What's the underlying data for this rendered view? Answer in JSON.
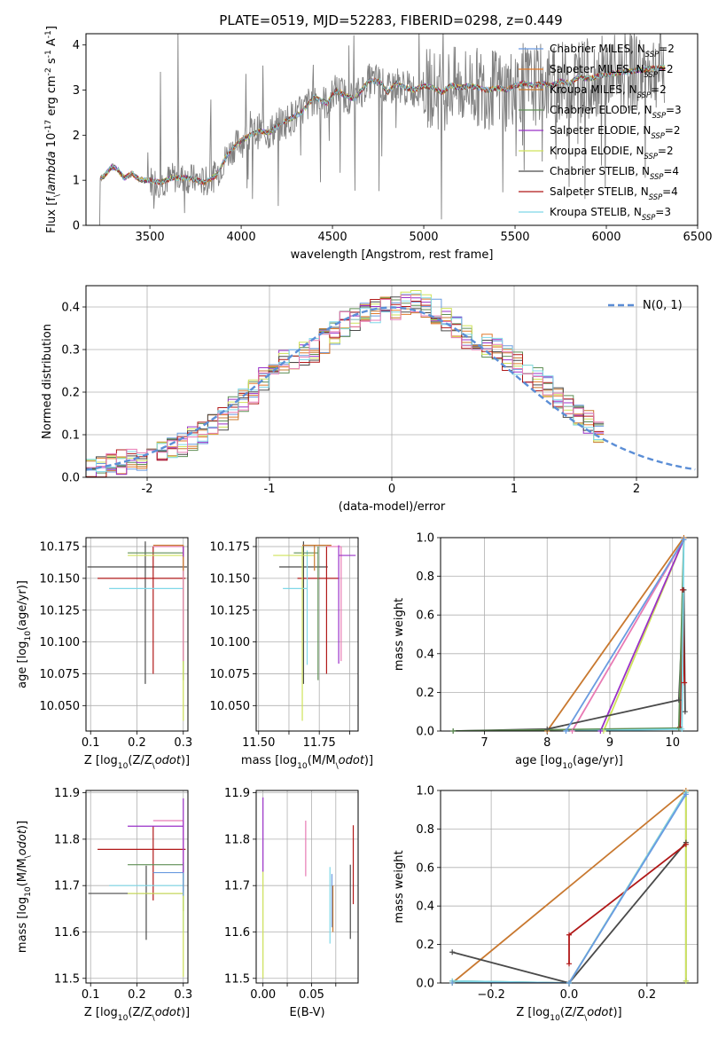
{
  "figure": {
    "title": "PLATE=0519, MJD=52283, FIBERID=0298, z=0.449"
  },
  "palette": {
    "Chabrier MILES": "#6a9be0",
    "Salpeter MILES": "#e07a2a",
    "Kroupa MILES": "#c8782f",
    "Chabrier ELODIE": "#5f8f55",
    "Salpeter ELODIE": "#9a30c8",
    "Kroupa ELODIE": "#cfe35a",
    "Chabrier STELIB": "#4a4a4a",
    "Salpeter STELIB": "#b01818",
    "Kroupa STELIB": "#7fd8e8",
    "pink": "#e87ab4",
    "data": "#808080"
  },
  "chart_data": [
    {
      "id": "spectrum",
      "type": "line",
      "xlabel": "wavelength [Angstrom, rest frame]",
      "ylabel": "Flux [f$_\\lambda$ 10$^{-17}$ erg cm$^{-2}$ s$^{-1}$ A$^{-1}$]",
      "xlim": [
        3150,
        6500
      ],
      "ylim": [
        0,
        4.25
      ],
      "xticks": [
        3500,
        4000,
        4500,
        5000,
        5500,
        6000,
        6500
      ],
      "yticks": [
        0,
        1,
        2,
        3,
        4
      ],
      "grid": false,
      "legend_position": "upper-right",
      "legend": [
        {
          "label": "Chabrier MILES, N",
          "sub": "SSP",
          "suffix": "=2",
          "color": "#6a9be0"
        },
        {
          "label": "Salpeter MILES, N",
          "sub": "SSP",
          "suffix": "=2",
          "color": "#e07a2a"
        },
        {
          "label": "Kroupa MILES, N",
          "sub": "SSP",
          "suffix": "=2",
          "color": "#c8782f"
        },
        {
          "label": "Chabrier ELODIE, N",
          "sub": "SSP",
          "suffix": "=3",
          "color": "#5f8f55"
        },
        {
          "label": "Salpeter ELODIE, N",
          "sub": "SSP",
          "suffix": "=2",
          "color": "#9a30c8"
        },
        {
          "label": "Kroupa ELODIE, N",
          "sub": "SSP",
          "suffix": "=2",
          "color": "#cfe35a"
        },
        {
          "label": "Chabrier STELIB, N",
          "sub": "SSP",
          "suffix": "=4",
          "color": "#4a4a4a"
        },
        {
          "label": "Salpeter STELIB, N",
          "sub": "SSP",
          "suffix": "=4",
          "color": "#b01818"
        },
        {
          "label": "Kroupa STELIB, N",
          "sub": "SSP",
          "suffix": "=3",
          "color": "#7fd8e8"
        }
      ],
      "model_anchor_x": [
        3230,
        3250,
        3290,
        3320,
        3360,
        3400,
        3450,
        3500,
        3560,
        3620,
        3700,
        3760,
        3800,
        3860,
        3930,
        3990,
        4050,
        4100,
        4150,
        4200,
        4260,
        4330,
        4400,
        4470,
        4520,
        4560,
        4620,
        4700,
        4760,
        4800,
        4850,
        4900,
        4950,
        5000,
        5050,
        5100,
        5150,
        5200,
        5250,
        5300,
        5350,
        5400,
        5450,
        5500,
        5550,
        5600,
        5650,
        5700,
        5750,
        5800,
        5850,
        5900,
        5950,
        6000,
        6100,
        6200,
        6300
      ],
      "model_anchor_y": [
        1.05,
        1.1,
        1.3,
        1.25,
        1.05,
        1.15,
        1.0,
        1.0,
        0.95,
        1.05,
        1.05,
        1.0,
        0.95,
        1.1,
        1.6,
        1.85,
        2.0,
        2.1,
        2.05,
        2.2,
        2.35,
        2.5,
        2.85,
        2.7,
        3.0,
        2.9,
        2.8,
        3.2,
        3.2,
        2.95,
        3.15,
        3.05,
        3.0,
        3.1,
        3.05,
        2.95,
        3.1,
        3.05,
        3.1,
        3.05,
        3.0,
        3.05,
        3.0,
        3.1,
        3.15,
        3.1,
        3.15,
        3.1,
        3.2,
        3.15,
        3.3,
        3.25,
        3.3,
        3.35,
        3.4,
        3.45,
        3.5
      ]
    },
    {
      "id": "residuals",
      "type": "histogram",
      "xlabel": "(data-model)/error",
      "ylabel": "Normed distribution",
      "xlim": [
        -2.5,
        2.5
      ],
      "ylim": [
        0,
        0.45
      ],
      "xticks": [
        -2,
        -1,
        0,
        1,
        2
      ],
      "yticks": [
        0.0,
        0.1,
        0.2,
        0.3,
        0.4
      ],
      "grid": true,
      "legend_position": "upper-right",
      "gaussian_label": "N(0, 1)",
      "gaussian_color": "#5b8ed6",
      "bin_width": 0.1,
      "base_profile": [
        0.02,
        0.025,
        0.03,
        0.035,
        0.04,
        0.045,
        0.05,
        0.06,
        0.07,
        0.075,
        0.09,
        0.1,
        0.12,
        0.14,
        0.16,
        0.18,
        0.2,
        0.23,
        0.25,
        0.27,
        0.28,
        0.29,
        0.3,
        0.32,
        0.34,
        0.36,
        0.37,
        0.38,
        0.39,
        0.395,
        0.4,
        0.41,
        0.41,
        0.4,
        0.39,
        0.37,
        0.35,
        0.33,
        0.32,
        0.31,
        0.3,
        0.28,
        0.27,
        0.25,
        0.23,
        0.21,
        0.19,
        0.17,
        0.15,
        0.13,
        0.11,
        0.1,
        0.09,
        0.08,
        0.07,
        0.065,
        0.06,
        0.055,
        0.05,
        0.045,
        0.04
      ],
      "base_profile_start": -2.5
    },
    {
      "id": "age_vs_Z",
      "type": "errorbar",
      "xlabel": "Z [log$_{10}$(Z/Z$_\\odot$)]",
      "ylabel": "age  [log$_{10}$(age/yr)]",
      "xlim": [
        0.09,
        0.31
      ],
      "ylim": [
        10.03,
        10.182
      ],
      "xticks": [
        0.1,
        0.2,
        0.3
      ],
      "yticks": [
        10.05,
        10.075,
        10.1,
        10.125,
        10.15,
        10.175
      ],
      "grid": true,
      "points": [
        {
          "color": "#4a4a4a",
          "x": 0.218,
          "xerr": [
            0.125,
            0.09
          ],
          "y": 10.159,
          "yerr": [
            0.092,
            0.02
          ]
        },
        {
          "color": "#b01818",
          "x": 0.235,
          "xerr": [
            0.12,
            0.07
          ],
          "y": 10.15,
          "yerr": [
            0.075,
            0.025
          ]
        },
        {
          "color": "#7fd8e8",
          "x": 0.3,
          "xerr": [
            0.16,
            0.0
          ],
          "y": 10.142,
          "yerr": [
            0.06,
            0.03
          ]
        },
        {
          "color": "#5f8f55",
          "x": 0.3,
          "xerr": [
            0.12,
            0.0
          ],
          "y": 10.17,
          "yerr": [
            0.1,
            0.005
          ]
        },
        {
          "color": "#cfe35a",
          "x": 0.3,
          "xerr": [
            0.12,
            0.0
          ],
          "y": 10.168,
          "yerr": [
            0.13,
            0.007
          ]
        },
        {
          "color": "#e87ab4",
          "x": 0.3,
          "xerr": [
            0.065,
            0.0
          ],
          "y": 10.175,
          "yerr": [
            0.09,
            0.0
          ]
        },
        {
          "color": "#c8782f",
          "x": 0.3,
          "xerr": [
            0.065,
            0.0
          ],
          "y": 10.176,
          "yerr": [
            0.02,
            0.0
          ]
        },
        {
          "color": "#9a30c8",
          "x": 0.3,
          "xerr": [
            0.0,
            0.0
          ],
          "y": 10.175,
          "yerr": [
            0.008,
            0.0
          ]
        }
      ]
    },
    {
      "id": "age_vs_mass",
      "type": "errorbar",
      "xlabel": "mass [log$_{10}$(M/M$_\\odot$)]",
      "ylabel": "",
      "xlim": [
        11.49,
        11.91
      ],
      "ylim": [
        10.03,
        10.182
      ],
      "xticks": [
        11.5,
        11.75
      ],
      "xticklabels": [
        "11.50",
        "11.75"
      ],
      "xticks_minor": [
        11.625,
        11.875
      ],
      "yticks": [
        10.05,
        10.075,
        10.1,
        10.125,
        10.15,
        10.175
      ],
      "grid": true,
      "points": [
        {
          "color": "#4a4a4a",
          "x": 11.685,
          "xerr": [
            0.1,
            0.1
          ],
          "y": 10.159,
          "yerr": [
            0.092,
            0.02
          ]
        },
        {
          "color": "#b01818",
          "x": 11.78,
          "xerr": [
            0.12,
            0.05
          ],
          "y": 10.15,
          "yerr": [
            0.075,
            0.025
          ]
        },
        {
          "color": "#7fd8e8",
          "x": 11.7,
          "xerr": [
            0.1,
            0.0
          ],
          "y": 10.142,
          "yerr": [
            0.06,
            0.03
          ]
        },
        {
          "color": "#5f8f55",
          "x": 11.745,
          "xerr": [
            0.1,
            0.0
          ],
          "y": 10.17,
          "yerr": [
            0.1,
            0.005
          ]
        },
        {
          "color": "#cfe35a",
          "x": 11.68,
          "xerr": [
            0.12,
            0.05
          ],
          "y": 10.168,
          "yerr": [
            0.13,
            0.007
          ]
        },
        {
          "color": "#e87ab4",
          "x": 11.84,
          "xerr": [
            0.06,
            0.0
          ],
          "y": 10.175,
          "yerr": [
            0.09,
            0.0
          ]
        },
        {
          "color": "#c8782f",
          "x": 11.73,
          "xerr": [
            0.05,
            0.07
          ],
          "y": 10.176,
          "yerr": [
            0.02,
            0.0
          ]
        },
        {
          "color": "#9a30c8",
          "x": 11.83,
          "xerr": [
            0.0,
            0.07
          ],
          "y": 10.168,
          "yerr": [
            0.085,
            0.008
          ]
        }
      ]
    },
    {
      "id": "weight_vs_age",
      "type": "line",
      "xlabel": "age  [log$_{10}$(age/yr)]",
      "ylabel": "mass weight",
      "xlim": [
        6.3,
        10.4
      ],
      "ylim": [
        0.0,
        1.0
      ],
      "xticks": [
        7,
        8,
        9,
        10
      ],
      "yticks": [
        0.0,
        0.2,
        0.4,
        0.6,
        0.8,
        1.0
      ],
      "grid": true,
      "series": [
        {
          "color": "#c8782f",
          "x": [
            8.0,
            10.18
          ],
          "y": [
            0.0,
            1.0
          ]
        },
        {
          "color": "#e87ab4",
          "x": [
            8.4,
            10.18
          ],
          "y": [
            0.0,
            0.99
          ]
        },
        {
          "color": "#cfe35a",
          "x": [
            8.9,
            10.18
          ],
          "y": [
            0.0,
            0.99
          ]
        },
        {
          "color": "#9a30c8",
          "x": [
            8.85,
            10.18
          ],
          "y": [
            0.0,
            0.99
          ]
        },
        {
          "color": "#4a4a4a",
          "x": [
            6.5,
            8.0,
            10.1,
            10.18,
            10.2
          ],
          "y": [
            0.0,
            0.01,
            0.16,
            0.73,
            0.1
          ]
        },
        {
          "color": "#b01818",
          "x": [
            10.12,
            10.16,
            10.19
          ],
          "y": [
            0.02,
            0.73,
            0.25
          ]
        },
        {
          "color": "#5f8f55",
          "x": [
            6.5,
            10.1,
            10.18
          ],
          "y": [
            0.0,
            0.015,
            0.99
          ]
        },
        {
          "color": "#7fd8e8",
          "x": [
            8.3,
            10.15,
            10.18
          ],
          "y": [
            0.0,
            0.01,
            0.99
          ]
        },
        {
          "color": "#6a9be0",
          "x": [
            8.3,
            10.18
          ],
          "y": [
            0.0,
            0.99
          ]
        }
      ]
    },
    {
      "id": "mass_vs_Z",
      "type": "errorbar",
      "xlabel": "Z [log$_{10}$(Z/Z$_\\odot$)]",
      "ylabel": "mass [log$_{10}$(M/M$_\\odot$)]",
      "xlim": [
        0.09,
        0.31
      ],
      "ylim": [
        11.49,
        11.905
      ],
      "xticks": [
        0.1,
        0.2,
        0.3
      ],
      "yticks": [
        11.5,
        11.6,
        11.7,
        11.8,
        11.9
      ],
      "grid": true,
      "points": [
        {
          "color": "#4a4a4a",
          "x": 0.22,
          "xerr": [
            0.125,
            0.08
          ],
          "y": 11.683,
          "yerr": [
            0.1,
            0.06
          ]
        },
        {
          "color": "#b01818",
          "x": 0.235,
          "xerr": [
            0.12,
            0.07
          ],
          "y": 11.778,
          "yerr": [
            0.11,
            0.05
          ]
        },
        {
          "color": "#7fd8e8",
          "x": 0.3,
          "xerr": [
            0.16,
            0.0
          ],
          "y": 11.7,
          "yerr": [
            0.1,
            0.03
          ]
        },
        {
          "color": "#5f8f55",
          "x": 0.3,
          "xerr": [
            0.12,
            0.0
          ],
          "y": 11.745,
          "yerr": [
            0.1,
            0.005
          ]
        },
        {
          "color": "#cfe35a",
          "x": 0.3,
          "xerr": [
            0.12,
            0.0
          ],
          "y": 11.683,
          "yerr": [
            0.18,
            0.005
          ]
        },
        {
          "color": "#e87ab4",
          "x": 0.3,
          "xerr": [
            0.065,
            0.0
          ],
          "y": 11.84,
          "yerr": [
            0.09,
            0.0
          ]
        },
        {
          "color": "#6a9be0",
          "x": 0.3,
          "xerr": [
            0.065,
            0.0
          ],
          "y": 11.728,
          "yerr": [
            0.05,
            0.0
          ]
        },
        {
          "color": "#9a30c8",
          "x": 0.3,
          "xerr": [
            0.12,
            0.0
          ],
          "y": 11.828,
          "yerr": [
            0.1,
            0.06
          ]
        }
      ]
    },
    {
      "id": "mass_vs_EBV",
      "type": "errorbar",
      "xlabel": "E(B-V)",
      "ylabel": "",
      "xlim": [
        -0.007,
        0.098
      ],
      "ylim": [
        11.49,
        11.905
      ],
      "xticks": [
        0.0,
        0.05
      ],
      "xticklabels": [
        "0.00",
        "0.05"
      ],
      "xticks_minor": [
        0.025,
        0.075
      ],
      "yticks": [
        11.5,
        11.6,
        11.7,
        11.8,
        11.9
      ],
      "grid": true,
      "points": [
        {
          "color": "#9a30c8",
          "x": 0.0,
          "xerr": [
            0,
            0
          ],
          "y": 11.81,
          "yerr": [
            0.08,
            0.08
          ]
        },
        {
          "color": "#cfe35a",
          "x": 0.0,
          "xerr": [
            0,
            0
          ],
          "y": 11.62,
          "yerr": [
            0.12,
            0.11
          ]
        },
        {
          "color": "#e87ab4",
          "x": 0.044,
          "xerr": [
            0,
            0
          ],
          "y": 11.78,
          "yerr": [
            0.06,
            0.06
          ]
        },
        {
          "color": "#7fd8e8",
          "x": 0.069,
          "xerr": [
            0,
            0
          ],
          "y": 11.655,
          "yerr": [
            0.08,
            0.085
          ]
        },
        {
          "color": "#6a9be0",
          "x": 0.071,
          "xerr": [
            0,
            0
          ],
          "y": 11.66,
          "yerr": [
            0.05,
            0.065
          ]
        },
        {
          "color": "#c8782f",
          "x": 0.072,
          "xerr": [
            0,
            0
          ],
          "y": 11.65,
          "yerr": [
            0.05,
            0.05
          ]
        },
        {
          "color": "#4a4a4a",
          "x": 0.09,
          "xerr": [
            0,
            0
          ],
          "y": 11.665,
          "yerr": [
            0.08,
            0.08
          ]
        },
        {
          "color": "#b01818",
          "x": 0.093,
          "xerr": [
            0,
            0
          ],
          "y": 11.745,
          "yerr": [
            0.085,
            0.085
          ]
        }
      ]
    },
    {
      "id": "weight_vs_Z",
      "type": "line",
      "xlabel": "Z [log$_{10}$(Z/Z$_\\odot$)]",
      "ylabel": "mass weight",
      "xlim": [
        -0.33,
        0.33
      ],
      "ylim": [
        0.0,
        1.0
      ],
      "xticks": [
        -0.2,
        0.0,
        0.2
      ],
      "xticklabels": [
        "−0.2",
        "0.0",
        "0.2"
      ],
      "yticks": [
        0.0,
        0.2,
        0.4,
        0.6,
        0.8,
        1.0
      ],
      "grid": true,
      "series": [
        {
          "color": "#c8782f",
          "x": [
            -0.3,
            0.3
          ],
          "y": [
            0.0,
            1.0
          ]
        },
        {
          "color": "#4a4a4a",
          "x": [
            -0.3,
            0.0,
            0.3
          ],
          "y": [
            0.16,
            0.0,
            0.73
          ]
        },
        {
          "color": "#b01818",
          "x": [
            0.0,
            0.0,
            0.3
          ],
          "y": [
            0.1,
            0.25,
            0.72
          ]
        },
        {
          "color": "#5f8f55",
          "x": [
            -0.3,
            0.0,
            0.3,
            0.3
          ],
          "y": [
            0.01,
            0.0,
            0.99,
            0.01
          ]
        },
        {
          "color": "#cfe35a",
          "x": [
            -0.3,
            0.0,
            0.3,
            0.3
          ],
          "y": [
            0.0,
            0.0,
            0.99,
            0.01
          ]
        },
        {
          "color": "#7fd8e8",
          "x": [
            -0.3,
            0.0,
            0.3
          ],
          "y": [
            0.01,
            0.0,
            0.99
          ]
        },
        {
          "color": "#6a9be0",
          "x": [
            -0.3,
            0.0,
            0.3
          ],
          "y": [
            0.0,
            0.0,
            0.98
          ]
        }
      ]
    }
  ]
}
